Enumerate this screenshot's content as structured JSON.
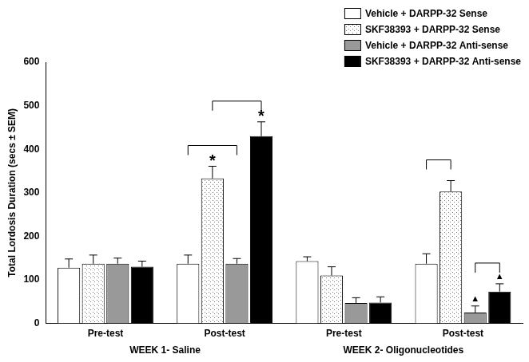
{
  "chart_data": {
    "type": "bar",
    "ylabel": "Total Lordosis Duration (secs ± SEM)",
    "categories": [
      "Pre-test",
      "Post-test",
      "Pre-test",
      "Post-test"
    ],
    "groups": [
      {
        "name": "WEEK 1- Saline",
        "categories": [
          0,
          1
        ]
      },
      {
        "name": "WEEK 2- Oligonucleotides",
        "categories": [
          2,
          3
        ]
      }
    ],
    "series": [
      {
        "name": "Vehicle + DARPP-32 Sense",
        "color": "#ffffff",
        "values": [
          128,
          137,
          143,
          137
        ],
        "errors": [
          20,
          20,
          10,
          23
        ]
      },
      {
        "name": "SKF38393 + DARPP-32 Sense",
        "color": "#ffffff",
        "marker": "dots",
        "values": [
          137,
          333,
          110,
          303
        ],
        "errors": [
          20,
          28,
          20,
          25
        ]
      },
      {
        "name": "Vehicle + DARPP-32 Anti-sense",
        "color": "#999999",
        "values": [
          137,
          137,
          47,
          25
        ],
        "errors": [
          13,
          12,
          12,
          15
        ]
      },
      {
        "name": "SKF38393 + DARPP-32 Anti-sense",
        "color": "#000000",
        "values": [
          130,
          430,
          48,
          73
        ],
        "errors": [
          13,
          33,
          13,
          18
        ]
      }
    ],
    "ylim": [
      0,
      600
    ],
    "yticks": [
      0,
      100,
      200,
      300,
      400,
      500,
      600
    ],
    "grid": false,
    "legend": "top-right",
    "annotations": [
      {
        "text": "*",
        "series": "SKF38393 + DARPP-32 Sense",
        "category": 1
      },
      {
        "text": "*",
        "series": "SKF38393 + DARPP-32 Anti-sense",
        "category": 1
      },
      {
        "text": "▲",
        "series": "Vehicle + DARPP-32 Anti-sense",
        "category": 3
      },
      {
        "text": "▲",
        "series": "SKF38393 + DARPP-32 Anti-sense",
        "category": 3
      }
    ],
    "brackets": [
      {
        "category": 1,
        "series": [
          "Vehicle + DARPP-32 Sense",
          "Vehicle + DARPP-32 Anti-sense"
        ]
      },
      {
        "category": 1,
        "series": [
          "SKF38393 + DARPP-32 Sense",
          "SKF38393 + DARPP-32 Anti-sense"
        ]
      },
      {
        "category": 3,
        "series": [
          "Vehicle + DARPP-32 Sense",
          "SKF38393 + DARPP-32 Sense"
        ]
      },
      {
        "category": 3,
        "series": [
          "Vehicle + DARPP-32 Anti-sense",
          "SKF38393 + DARPP-32 Anti-sense"
        ]
      }
    ]
  }
}
